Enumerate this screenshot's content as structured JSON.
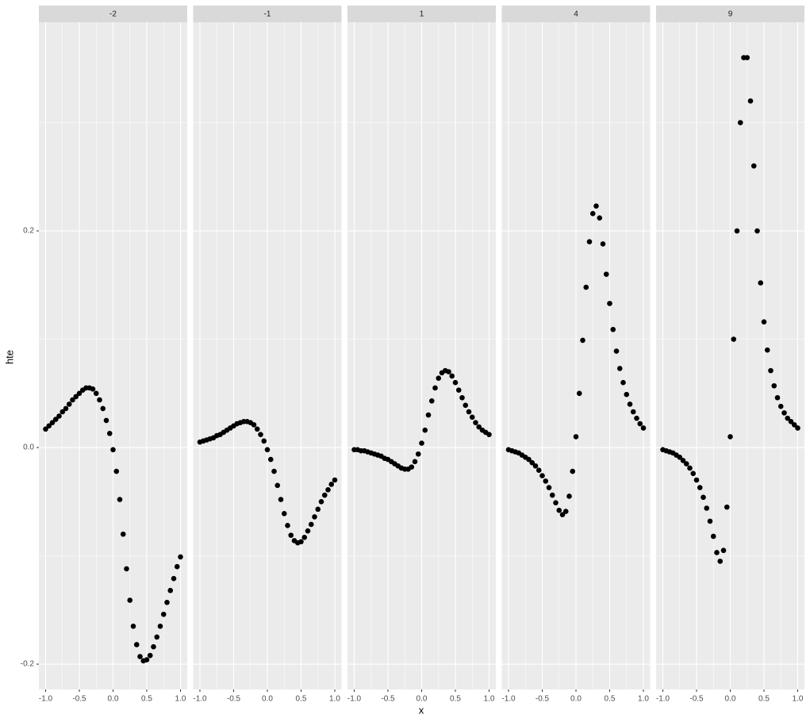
{
  "chart_data": {
    "type": "scatter",
    "x_label": "x",
    "y_label": "hte",
    "xlim": [
      -1.1,
      1.1
    ],
    "ylim": [
      -0.2234,
      0.3927
    ],
    "xticks": [
      {
        "value": -1,
        "label": "-1.0"
      },
      -0.5,
      {
        "value": 0,
        "label": "0.0"
      },
      0.5,
      {
        "value": 1,
        "label": "1.0"
      }
    ],
    "minor_xticks": [
      -0.75,
      -0.25,
      0.25,
      0.75
    ],
    "yticks": [
      -0.2,
      {
        "value": 0,
        "label": "0.0"
      },
      0.2
    ],
    "minor_yticks": [
      -0.1,
      0.1,
      0.3
    ],
    "grid": true,
    "color": "#000000",
    "x": [
      -1,
      -0.95,
      -0.9,
      -0.85,
      -0.8,
      -0.75,
      -0.7,
      -0.65,
      -0.6,
      -0.55,
      -0.5,
      -0.45,
      -0.4,
      -0.35,
      -0.3,
      -0.25,
      -0.2,
      -0.15,
      -0.1,
      -0.05,
      0,
      0.05,
      0.1,
      0.15,
      0.2,
      0.25,
      0.3,
      0.35,
      0.4,
      0.45,
      0.5,
      0.55,
      0.6,
      0.65,
      0.7,
      0.75,
      0.8,
      0.85,
      0.9,
      0.95,
      1
    ],
    "facets": [
      {
        "name": "-2",
        "values": [
          0.017,
          0.02,
          0.023,
          0.026,
          0.029,
          0.033,
          0.036,
          0.04,
          0.044,
          0.047,
          0.05,
          0.053,
          0.055,
          0.055,
          0.054,
          0.05,
          0.044,
          0.036,
          0.025,
          0.013,
          -0.002,
          -0.022,
          -0.048,
          -0.08,
          -0.112,
          -0.141,
          -0.165,
          -0.182,
          -0.193,
          -0.197,
          -0.196,
          -0.192,
          -0.184,
          -0.175,
          -0.165,
          -0.154,
          -0.143,
          -0.132,
          -0.121,
          -0.11,
          -0.101
        ]
      },
      {
        "name": "-1",
        "values": [
          0.005,
          0.006,
          0.007,
          0.008,
          0.009,
          0.011,
          0.012,
          0.014,
          0.016,
          0.018,
          0.02,
          0.022,
          0.023,
          0.024,
          0.024,
          0.023,
          0.021,
          0.017,
          0.012,
          0.006,
          -0.002,
          -0.011,
          -0.022,
          -0.035,
          -0.048,
          -0.061,
          -0.072,
          -0.081,
          -0.086,
          -0.088,
          -0.087,
          -0.083,
          -0.077,
          -0.071,
          -0.064,
          -0.057,
          -0.05,
          -0.044,
          -0.039,
          -0.034,
          -0.03
        ]
      },
      {
        "name": "1",
        "values": [
          -0.002,
          -0.002,
          -0.003,
          -0.003,
          -0.004,
          -0.005,
          -0.006,
          -0.007,
          -0.008,
          -0.01,
          -0.011,
          -0.013,
          -0.015,
          -0.017,
          -0.019,
          -0.02,
          -0.02,
          -0.018,
          -0.013,
          -0.006,
          0.004,
          0.016,
          0.03,
          0.043,
          0.055,
          0.064,
          0.069,
          0.071,
          0.07,
          0.066,
          0.06,
          0.053,
          0.046,
          0.039,
          0.033,
          0.028,
          0.023,
          0.019,
          0.016,
          0.014,
          0.012
        ]
      },
      {
        "name": "4",
        "values": [
          -0.002,
          -0.003,
          -0.004,
          -0.005,
          -0.007,
          -0.009,
          -0.011,
          -0.014,
          -0.017,
          -0.021,
          -0.026,
          -0.031,
          -0.037,
          -0.044,
          -0.051,
          -0.058,
          -0.062,
          -0.059,
          -0.045,
          -0.022,
          0.01,
          0.05,
          0.099,
          0.148,
          0.19,
          0.216,
          0.223,
          0.212,
          0.188,
          0.16,
          0.133,
          0.109,
          0.089,
          0.073,
          0.06,
          0.049,
          0.04,
          0.033,
          0.027,
          0.022,
          0.018
        ]
      },
      {
        "name": "9",
        "values": [
          -0.002,
          -0.003,
          -0.004,
          -0.005,
          -0.007,
          -0.009,
          -0.012,
          -0.015,
          -0.019,
          -0.024,
          -0.03,
          -0.037,
          -0.046,
          -0.056,
          -0.068,
          -0.082,
          -0.097,
          -0.105,
          -0.095,
          -0.055,
          0.01,
          0.1,
          0.2,
          0.3,
          0.36,
          0.36,
          0.32,
          0.26,
          0.2,
          0.152,
          0.116,
          0.09,
          0.071,
          0.057,
          0.046,
          0.038,
          0.032,
          0.027,
          0.024,
          0.021,
          0.018
        ]
      }
    ]
  }
}
